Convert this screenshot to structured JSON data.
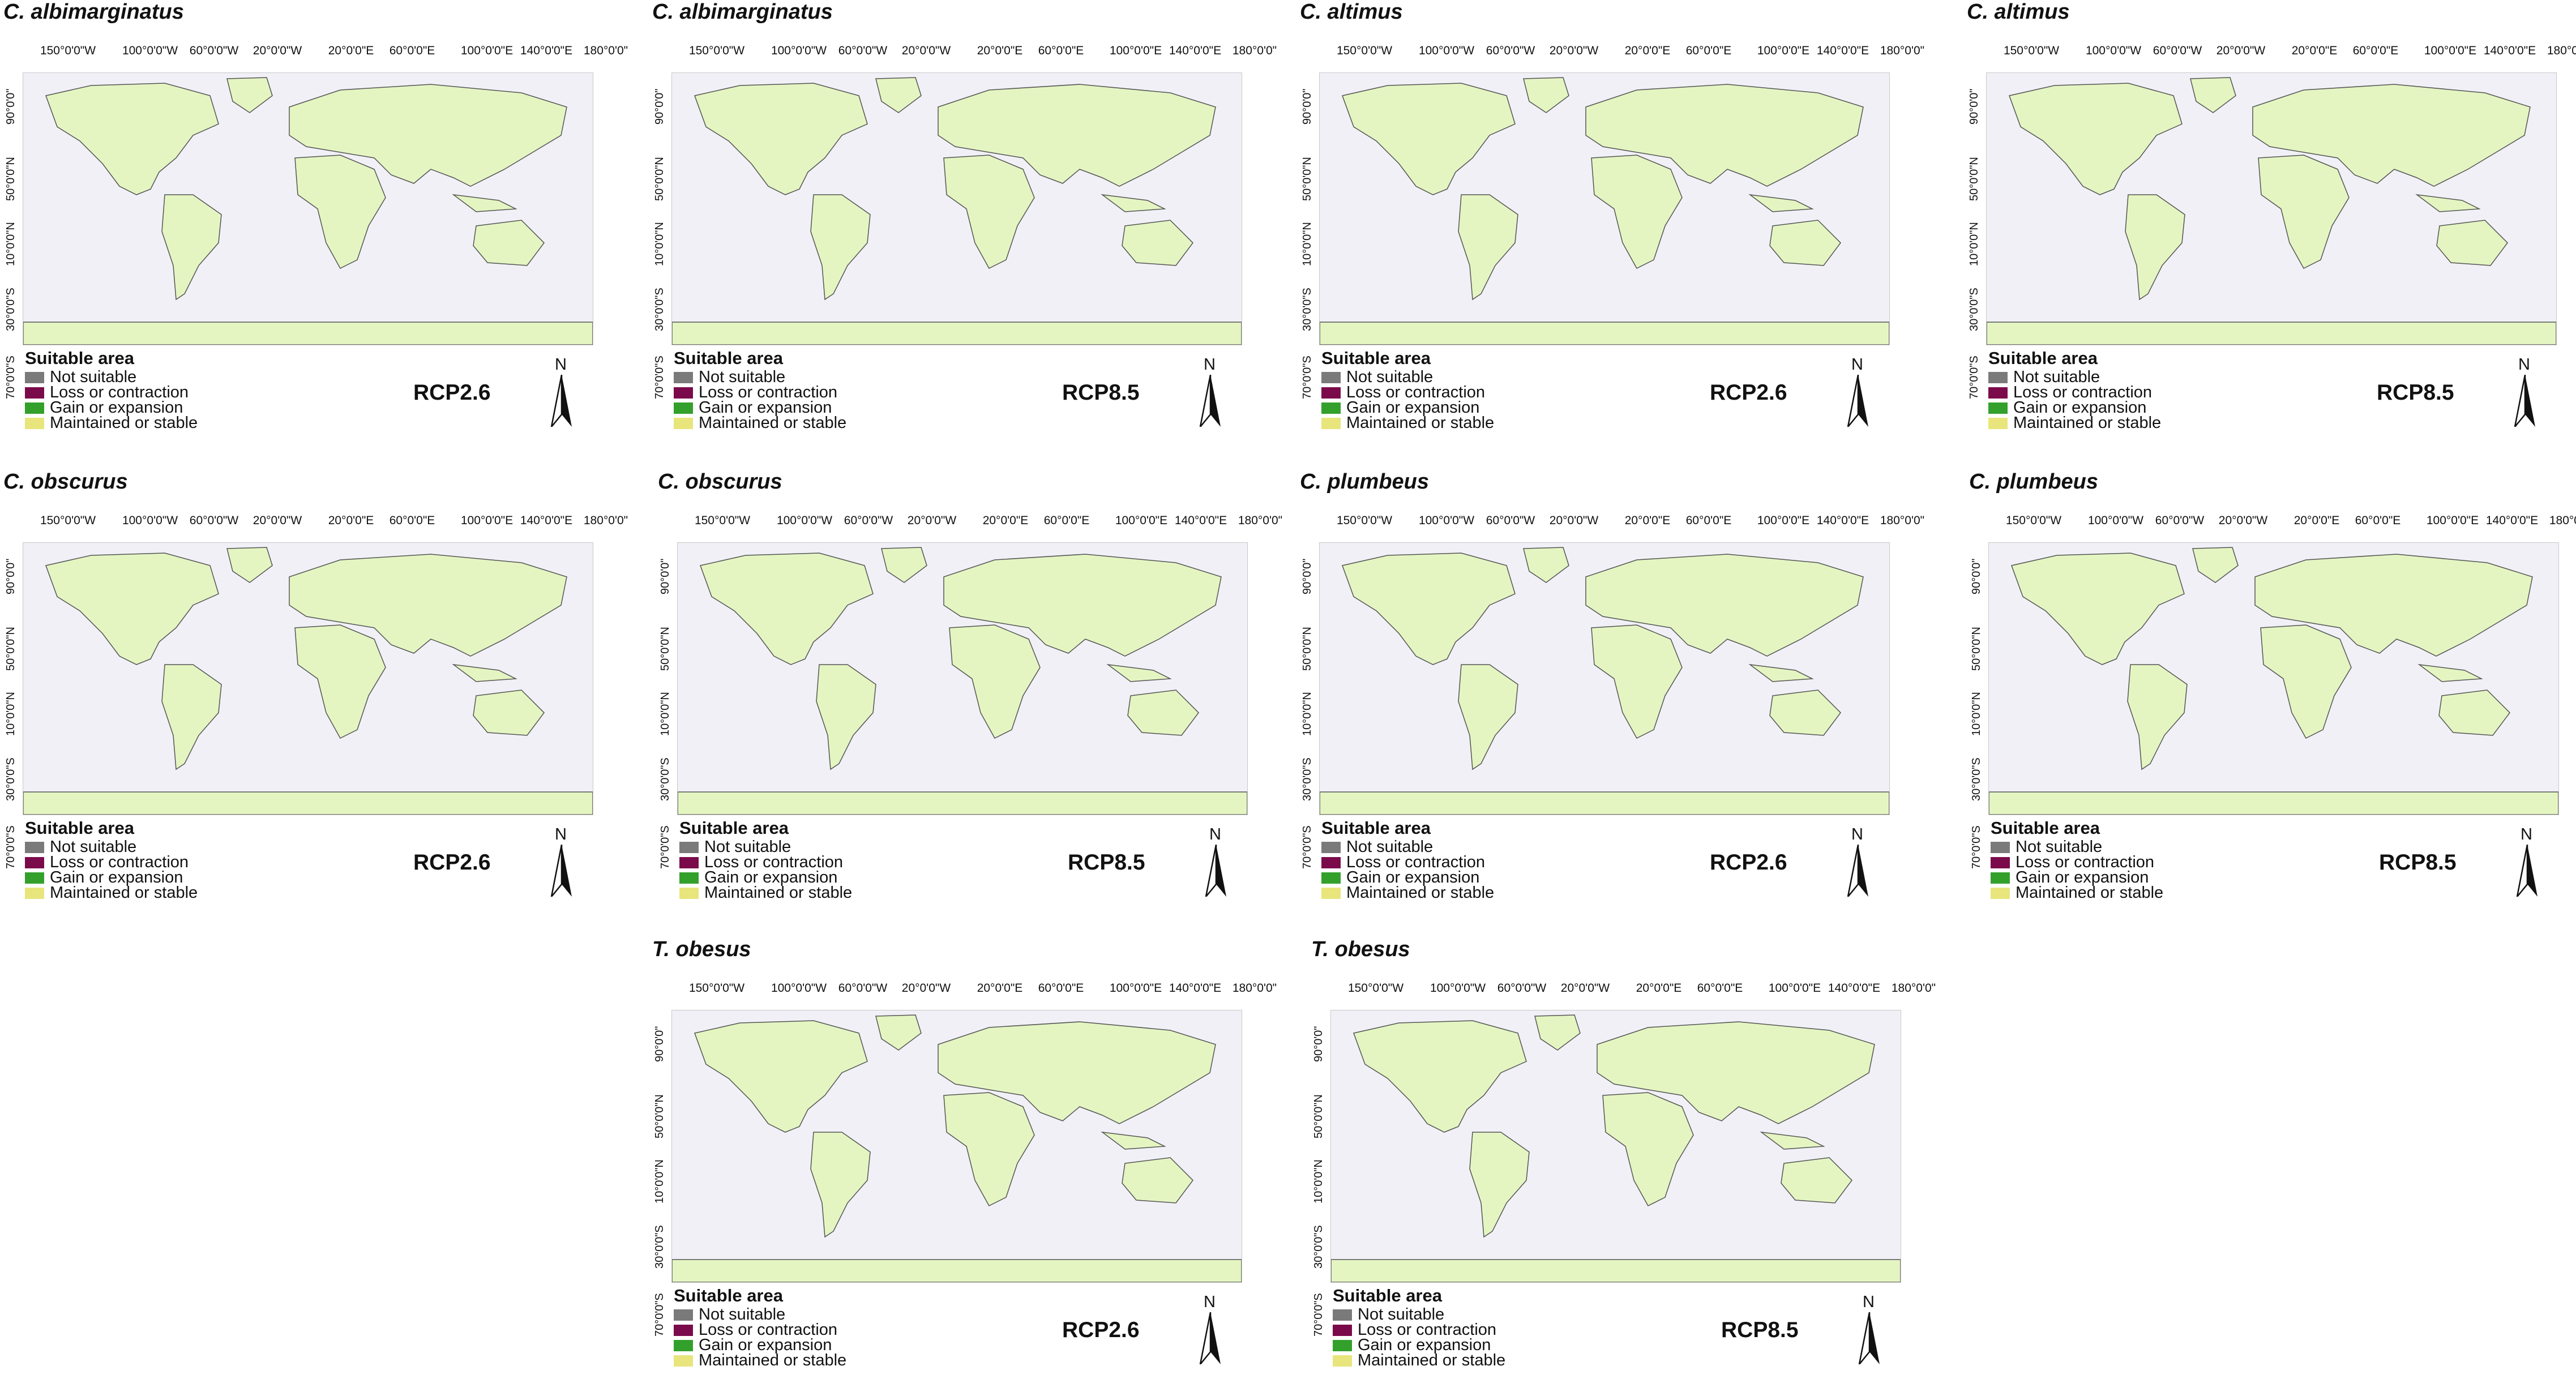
{
  "figure": {
    "lon_labels": [
      "150°0'0\"W",
      "100°0'0\"W",
      "60°0'0\"W",
      "20°0'0\"W",
      "20°0'0\"E",
      "60°0'0\"E",
      "100°0'0\"E",
      "140°0'0\"E",
      "180°0'0\""
    ],
    "lat_labels": [
      "90°0'0\"",
      "50°0'0\"N",
      "10°0'0\"N",
      "30°0'0\"S",
      "70°0'0\"S"
    ],
    "legend": {
      "title": "Suitable area",
      "items": [
        {
          "label": "Not suitable",
          "color": "#7a7a7a"
        },
        {
          "label": "Loss or contraction",
          "color": "#7b0a4b"
        },
        {
          "label": "Gain or expansion",
          "color": "#33a02c"
        },
        {
          "label": "Maintained or stable",
          "color": "#e8e57c"
        }
      ]
    },
    "north_label": "N",
    "colors": {
      "land": "#e4f5c2",
      "ocean": "#f0f0f6",
      "coast": "#555555"
    }
  },
  "panels": [
    {
      "species": "C. albimarginatus",
      "scenario": "RCP2.6"
    },
    {
      "species": "C. albimarginatus",
      "scenario": "RCP8.5"
    },
    {
      "species": "C. altimus",
      "scenario": "RCP2.6"
    },
    {
      "species": "C. altimus",
      "scenario": "RCP8.5"
    },
    {
      "species": "C. obscurus",
      "scenario": "RCP2.6"
    },
    {
      "species": "C. obscurus",
      "scenario": "RCP8.5"
    },
    {
      "species": "C. plumbeus",
      "scenario": "RCP2.6"
    },
    {
      "species": "C. plumbeus",
      "scenario": "RCP8.5"
    },
    {
      "species": "T. obesus",
      "scenario": "RCP2.6"
    },
    {
      "species": "T. obesus",
      "scenario": "RCP8.5"
    }
  ]
}
